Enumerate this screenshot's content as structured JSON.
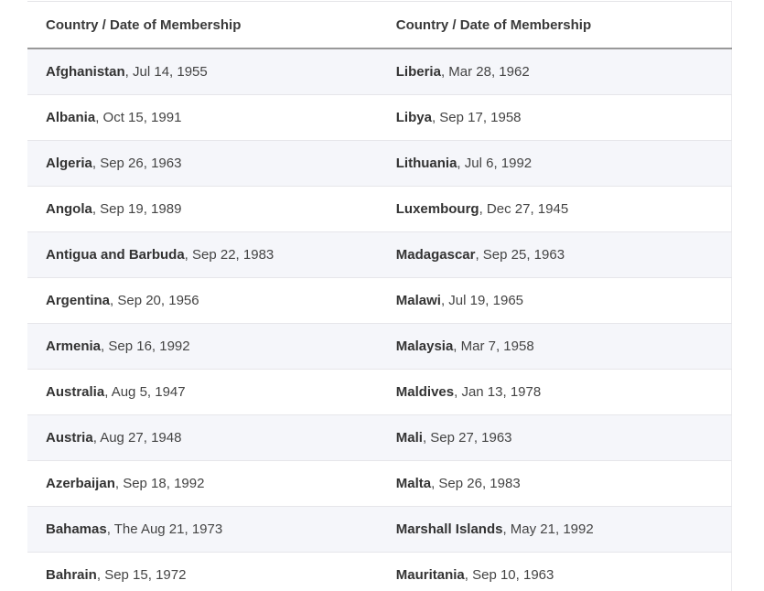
{
  "table": {
    "headers": [
      "Country / Date of Membership",
      "Country / Date of Membership"
    ],
    "rows": [
      [
        {
          "name": "Afghanistan",
          "date": ", Jul 14, 1955"
        },
        {
          "name": "Liberia",
          "date": ", Mar 28, 1962"
        }
      ],
      [
        {
          "name": "Albania",
          "date": ", Oct 15, 1991"
        },
        {
          "name": "Libya",
          "date": ", Sep 17, 1958"
        }
      ],
      [
        {
          "name": "Algeria",
          "date": ", Sep 26, 1963"
        },
        {
          "name": "Lithuania",
          "date": ", Jul 6, 1992"
        }
      ],
      [
        {
          "name": "Angola",
          "date": ", Sep 19, 1989"
        },
        {
          "name": "Luxembourg",
          "date": ", Dec 27, 1945"
        }
      ],
      [
        {
          "name": "Antigua and Barbuda",
          "date": ", Sep 22, 1983"
        },
        {
          "name": "Madagascar",
          "date": ", Sep 25, 1963"
        }
      ],
      [
        {
          "name": "Argentina",
          "date": ", Sep 20, 1956"
        },
        {
          "name": "Malawi",
          "date": ", Jul 19, 1965"
        }
      ],
      [
        {
          "name": "Armenia",
          "date": ", Sep 16, 1992"
        },
        {
          "name": "Malaysia",
          "date": ", Mar 7, 1958"
        }
      ],
      [
        {
          "name": "Australia",
          "date": ", Aug 5, 1947"
        },
        {
          "name": "Maldives",
          "date": ", Jan 13, 1978"
        }
      ],
      [
        {
          "name": "Austria",
          "date": ", Aug 27, 1948"
        },
        {
          "name": "Mali",
          "date": ", Sep 27, 1963"
        }
      ],
      [
        {
          "name": "Azerbaijan",
          "date": ", Sep 18, 1992"
        },
        {
          "name": "Malta",
          "date": ", Sep 26, 1983"
        }
      ],
      [
        {
          "name": "Bahamas",
          "date": ", The Aug 21, 1973"
        },
        {
          "name": "Marshall Islands",
          "date": ", May 21, 1992"
        }
      ],
      [
        {
          "name": "Bahrain",
          "date": ", Sep 15, 1972"
        },
        {
          "name": "Mauritania",
          "date": ", Sep 10, 1963"
        }
      ]
    ]
  }
}
